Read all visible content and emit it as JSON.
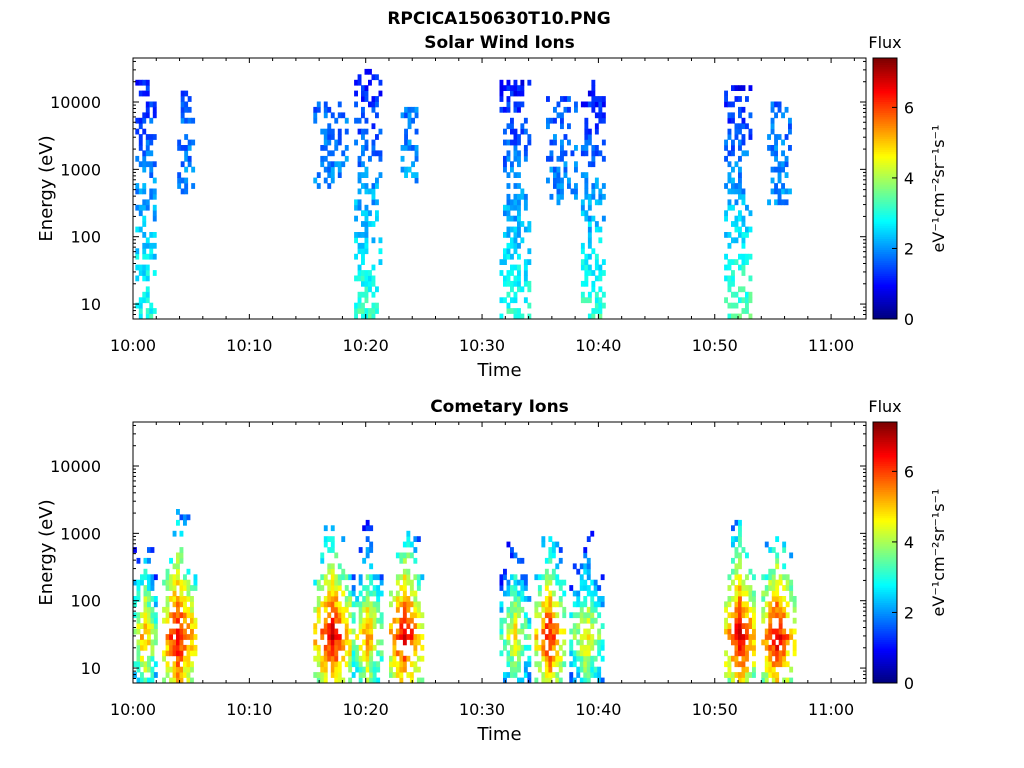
{
  "figure": {
    "title": "RPCICA150630T10.PNG"
  },
  "panels": [
    {
      "id": "solar",
      "title": "Solar Wind Ions",
      "xlabel": "Time",
      "ylabel": "Energy (eV)",
      "colorbar_title": "Flux",
      "colorbar_label": "eV⁻¹cm⁻²sr⁻¹s⁻¹"
    },
    {
      "id": "comet",
      "title": "Cometary Ions",
      "xlabel": "Time",
      "ylabel": "Energy (eV)",
      "colorbar_title": "Flux",
      "colorbar_label": "eV⁻¹cm⁻²sr⁻¹s⁻¹"
    }
  ],
  "chart_data": [
    {
      "type": "heatmap",
      "title": "Solar Wind Ions",
      "xlabel": "Time",
      "ylabel": "Energy (eV)",
      "x_range_minutes_after_10_00": [
        0,
        63
      ],
      "x_ticks": [
        "10:00",
        "10:10",
        "10:20",
        "10:30",
        "10:40",
        "10:50",
        "11:00"
      ],
      "y_scale": "log",
      "y_range_eV": [
        6,
        45000
      ],
      "y_ticks": [
        "10",
        "100",
        "1000",
        "10000"
      ],
      "colorbar": {
        "label": "Flux",
        "units": "eV⁻¹cm⁻²sr⁻¹s⁻¹",
        "range": [
          0,
          7.4
        ],
        "ticks": [
          "0",
          "2",
          "4",
          "6"
        ],
        "colormap": "jet"
      },
      "bursts": [
        {
          "t_start": 0.2,
          "t_end": 2.0,
          "e_min": 6,
          "e_max": 20000,
          "flux_low_energy": 3.0,
          "flux_high_energy": 1.2
        },
        {
          "t_start": 3.8,
          "t_end": 5.2,
          "e_min": 300,
          "e_max": 15000,
          "flux_low_energy": 2.0,
          "flux_high_energy": 1.5
        },
        {
          "t_start": 15.5,
          "t_end": 18.5,
          "e_min": 500,
          "e_max": 10000,
          "flux_low_energy": 2.0,
          "flux_high_energy": 1.6
        },
        {
          "t_start": 19.0,
          "t_end": 21.3,
          "e_min": 6,
          "e_max": 30000,
          "flux_low_energy": 3.2,
          "flux_high_energy": 1.0
        },
        {
          "t_start": 23.0,
          "t_end": 24.5,
          "e_min": 600,
          "e_max": 9000,
          "flux_low_energy": 2.1,
          "flux_high_energy": 1.7
        },
        {
          "t_start": 31.5,
          "t_end": 34.0,
          "e_min": 6,
          "e_max": 20000,
          "flux_low_energy": 3.1,
          "flux_high_energy": 1.0
        },
        {
          "t_start": 35.5,
          "t_end": 38.0,
          "e_min": 300,
          "e_max": 12000,
          "flux_low_energy": 2.0,
          "flux_high_energy": 1.5
        },
        {
          "t_start": 38.5,
          "t_end": 40.5,
          "e_min": 6,
          "e_max": 20000,
          "flux_low_energy": 3.2,
          "flux_high_energy": 1.0
        },
        {
          "t_start": 50.8,
          "t_end": 53.2,
          "e_min": 6,
          "e_max": 18000,
          "flux_low_energy": 3.4,
          "flux_high_energy": 1.0
        },
        {
          "t_start": 54.5,
          "t_end": 56.5,
          "e_min": 300,
          "e_max": 10000,
          "flux_low_energy": 2.0,
          "flux_high_energy": 1.6
        }
      ]
    },
    {
      "type": "heatmap",
      "title": "Cometary Ions",
      "xlabel": "Time",
      "ylabel": "Energy (eV)",
      "x_range_minutes_after_10_00": [
        0,
        63
      ],
      "x_ticks": [
        "10:00",
        "10:10",
        "10:20",
        "10:30",
        "10:40",
        "10:50",
        "11:00"
      ],
      "y_scale": "log",
      "y_range_eV": [
        6,
        45000
      ],
      "y_ticks": [
        "10",
        "100",
        "1000",
        "10000"
      ],
      "colorbar": {
        "label": "Flux",
        "units": "eV⁻¹cm⁻²sr⁻¹s⁻¹",
        "range": [
          0,
          7.4
        ],
        "ticks": [
          "0",
          "2",
          "4",
          "6"
        ],
        "colormap": "jet"
      },
      "bursts": [
        {
          "t_start": 0.0,
          "t_end": 2.0,
          "e_min": 6,
          "e_max": 600,
          "peak_energy": 30,
          "peak_flux": 5.5
        },
        {
          "t_start": 2.5,
          "t_end": 5.3,
          "e_min": 6,
          "e_max": 2500,
          "peak_energy": 30,
          "peak_flux": 6.8
        },
        {
          "t_start": 15.5,
          "t_end": 18.8,
          "e_min": 6,
          "e_max": 1200,
          "peak_energy": 30,
          "peak_flux": 6.8
        },
        {
          "t_start": 18.8,
          "t_end": 21.5,
          "e_min": 6,
          "e_max": 1500,
          "peak_energy": 30,
          "peak_flux": 5.5
        },
        {
          "t_start": 22.0,
          "t_end": 24.8,
          "e_min": 6,
          "e_max": 1000,
          "peak_energy": 30,
          "peak_flux": 6.8
        },
        {
          "t_start": 31.5,
          "t_end": 34.2,
          "e_min": 6,
          "e_max": 900,
          "peak_energy": 30,
          "peak_flux": 5.0
        },
        {
          "t_start": 34.5,
          "t_end": 37.0,
          "e_min": 6,
          "e_max": 900,
          "peak_energy": 30,
          "peak_flux": 6.5
        },
        {
          "t_start": 37.5,
          "t_end": 40.5,
          "e_min": 6,
          "e_max": 1200,
          "peak_energy": 30,
          "peak_flux": 5.0
        },
        {
          "t_start": 50.8,
          "t_end": 53.5,
          "e_min": 6,
          "e_max": 1500,
          "peak_energy": 30,
          "peak_flux": 6.8
        },
        {
          "t_start": 54.0,
          "t_end": 56.8,
          "e_min": 6,
          "e_max": 900,
          "peak_energy": 30,
          "peak_flux": 6.8
        }
      ]
    }
  ]
}
